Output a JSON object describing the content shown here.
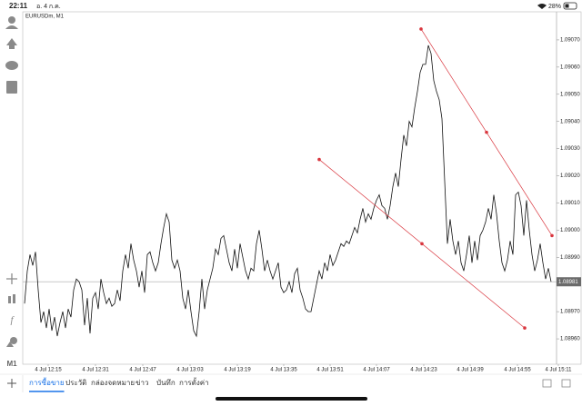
{
  "status_bar": {
    "time": "22:11",
    "date": "อ. 4 ก.ค.",
    "battery": "28%"
  },
  "toolbar": {
    "timeframe": "M1"
  },
  "tabs": {
    "items": [
      "การซื้อขาย",
      "ประวัติ",
      "กล่องจดหมาย",
      "ข่าว",
      "บันทึก",
      "การตั้งค่า"
    ],
    "active": 0
  },
  "chart_data": {
    "type": "line",
    "title": "EURUSDm, M1",
    "color": "#111111",
    "x_tick_labels": [
      "4 Jul 12:15",
      "4 Jul 12:31",
      "4 Jul 12:47",
      "4 Jul 13:03",
      "4 Jul 13:19",
      "4 Jul 13:35",
      "4 Jul 13:51",
      "4 Jul 14:07",
      "4 Jul 14:23",
      "4 Jul 14:39",
      "4 Jul 14:55",
      "4 Jul 15:11"
    ],
    "ylim": [
      1.08951,
      1.0908
    ],
    "yticks": [
      {
        "value": 1.0907,
        "label": "1.09070"
      },
      {
        "value": 1.0906,
        "label": "1.09060"
      },
      {
        "value": 1.0905,
        "label": "1.09050"
      },
      {
        "value": 1.0904,
        "label": "1.09040"
      },
      {
        "value": 1.0903,
        "label": "1.09030"
      },
      {
        "value": 1.0902,
        "label": "1.09020"
      },
      {
        "value": 1.0901,
        "label": "1.09010"
      },
      {
        "value": 1.09,
        "label": "1.09000"
      },
      {
        "value": 1.0899,
        "label": "1.08990"
      },
      {
        "value": 1.0897,
        "label": "1.08970"
      },
      {
        "value": 1.0896,
        "label": "1.08960"
      }
    ],
    "current_price": {
      "value": 1.08981,
      "label": "1.08981"
    },
    "trendlines": [
      {
        "color": "#d9363e",
        "values": [
          1.09074,
          1.09036,
          1.08998
        ]
      },
      {
        "color": "#d9363e",
        "values": [
          1.09026,
          1.08995,
          1.08964
        ]
      }
    ],
    "values": [
      1.08973,
      1.08985,
      1.08991,
      1.08987,
      1.08992,
      1.08978,
      1.08966,
      1.0897,
      1.08964,
      1.08971,
      1.08963,
      1.08968,
      1.08961,
      1.08966,
      1.0897,
      1.08964,
      1.08971,
      1.08968,
      1.08978,
      1.08982,
      1.08981,
      1.08978,
      1.08965,
      1.08975,
      1.08962,
      1.08975,
      1.08977,
      1.08971,
      1.08982,
      1.08977,
      1.08973,
      1.08975,
      1.08972,
      1.08973,
      1.08978,
      1.08974,
      1.08985,
      1.08991,
      1.08986,
      1.08995,
      1.08989,
      1.08985,
      1.08979,
      1.08985,
      1.08977,
      1.08991,
      1.08992,
      1.08988,
      1.08985,
      1.08988,
      1.08995,
      1.09001,
      1.09006,
      1.09003,
      1.08989,
      1.08986,
      1.08989,
      1.08985,
      1.08975,
      1.08971,
      1.08978,
      1.0897,
      1.08963,
      1.08961,
      1.0897,
      1.08982,
      1.08971,
      1.08978,
      1.08982,
      1.08986,
      1.08993,
      1.08991,
      1.08997,
      1.08998,
      1.08993,
      1.08988,
      1.08985,
      1.08993,
      1.08986,
      1.08995,
      1.0899,
      1.08985,
      1.08982,
      1.08986,
      1.08985,
      1.08995,
      1.09,
      1.08993,
      1.08985,
      1.08989,
      1.08985,
      1.08982,
      1.08985,
      1.08988,
      1.08979,
      1.08977,
      1.08978,
      1.08981,
      1.08977,
      1.08984,
      1.08986,
      1.08978,
      1.08975,
      1.08971,
      1.0897,
      1.0897,
      1.08975,
      1.0898,
      1.08985,
      1.08982,
      1.08988,
      1.08985,
      1.08991,
      1.08987,
      1.08989,
      1.08992,
      1.08995,
      1.08994,
      1.08996,
      1.08995,
      1.08998,
      1.09001,
      1.08999,
      1.09004,
      1.09008,
      1.09003,
      1.09006,
      1.09004,
      1.09008,
      1.09011,
      1.09013,
      1.09009,
      1.09008,
      1.09004,
      1.09009,
      1.09016,
      1.09021,
      1.09016,
      1.09026,
      1.09035,
      1.09031,
      1.0904,
      1.09038,
      1.09045,
      1.09051,
      1.09058,
      1.09061,
      1.09061,
      1.09068,
      1.09065,
      1.09055,
      1.09051,
      1.09048,
      1.09041,
      1.09018,
      1.08995,
      1.09004,
      1.08996,
      1.08991,
      1.08996,
      1.08988,
      1.08985,
      1.08991,
      1.08998,
      1.08988,
      1.08996,
      1.08989,
      1.08998,
      1.09,
      1.09003,
      1.09008,
      1.09004,
      1.09013,
      1.09006,
      1.08996,
      1.08988,
      1.08985,
      1.08989,
      1.08996,
      1.08991,
      1.09013,
      1.09014,
      1.09009,
      1.08998,
      1.09011,
      1.09,
      1.08991,
      1.08985,
      1.08989,
      1.08995,
      1.08988,
      1.08982,
      1.08986,
      1.08981
    ]
  }
}
